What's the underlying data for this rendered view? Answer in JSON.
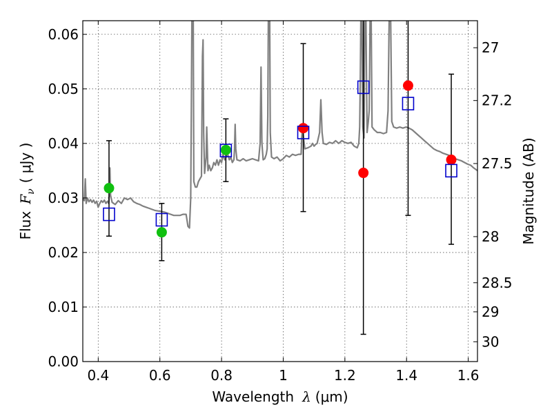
{
  "chart_data": {
    "type": "scatter",
    "xlabel": {
      "prefix": "Wavelength",
      "symbol": "λ",
      "unit": "(μm)"
    },
    "ylabel": {
      "prefix": "Flux",
      "symbol": "F",
      "subscript": "ν",
      "unit": "(  μJy )"
    },
    "y2label": "Magnitude (AB)",
    "xlim": [
      0.35,
      1.63
    ],
    "ylim": [
      0.0,
      0.0625
    ],
    "grid": true,
    "x_ticks": [
      0.4,
      0.6,
      0.8,
      1.0,
      1.2,
      1.4,
      1.6
    ],
    "x_tick_labels": [
      "0.4",
      "0.6",
      "0.8",
      "1",
      "1.2",
      "1.4",
      "1.6"
    ],
    "y_ticks": [
      0.0,
      0.01,
      0.02,
      0.03,
      0.04,
      0.05,
      0.06
    ],
    "y_tick_labels": [
      "0.00",
      "0.01",
      "0.02",
      "0.03",
      "0.04",
      "0.05",
      "0.06"
    ],
    "y2_ticks": [
      {
        "label": "27",
        "magnitude": 27.0
      },
      {
        "label": "27.2",
        "magnitude": 27.2
      },
      {
        "label": "27.5",
        "magnitude": 27.5
      },
      {
        "label": "28",
        "magnitude": 28.0
      },
      {
        "label": "28.5",
        "magnitude": 28.5
      },
      {
        "label": "29",
        "magnitude": 29.0
      },
      {
        "label": "30",
        "magnitude": 30.0
      }
    ],
    "series": [
      {
        "style": "open-square",
        "color": "#0000cc",
        "points": [
          {
            "x": 0.435,
            "y": 0.027,
            "ylo": 0.023,
            "yhi": 0.0405
          },
          {
            "x": 0.606,
            "y": 0.026,
            "ylo": 0.0185,
            "yhi": 0.029
          },
          {
            "x": 0.814,
            "y": 0.0387,
            "ylo": 0.033,
            "yhi": 0.0445
          },
          {
            "x": 1.065,
            "y": 0.042,
            "ylo": 0.0275,
            "yhi": 0.0583
          },
          {
            "x": 1.26,
            "y": 0.0503,
            "ylo": 0.005,
            "yhi": 0.065
          },
          {
            "x": 1.405,
            "y": 0.0473,
            "ylo": 0.0268,
            "yhi": 0.065
          },
          {
            "x": 1.545,
            "y": 0.035,
            "ylo": 0.0215,
            "yhi": 0.0527
          }
        ]
      },
      {
        "style": "filled-circle",
        "color": "#10c010",
        "points": [
          {
            "x": 0.435,
            "y": 0.0318
          },
          {
            "x": 0.606,
            "y": 0.0237
          },
          {
            "x": 0.814,
            "y": 0.0388
          }
        ]
      },
      {
        "style": "filled-circle",
        "color": "#ff0000",
        "points": [
          {
            "x": 1.065,
            "y": 0.0428
          },
          {
            "x": 1.26,
            "y": 0.0346
          },
          {
            "x": 1.405,
            "y": 0.0506
          },
          {
            "x": 1.545,
            "y": 0.037
          }
        ]
      },
      {
        "style": "line",
        "color": "#808080",
        "points": [
          [
            0.35,
            0.03
          ],
          [
            0.355,
            0.0295
          ],
          [
            0.358,
            0.0335
          ],
          [
            0.361,
            0.029
          ],
          [
            0.365,
            0.03
          ],
          [
            0.37,
            0.0293
          ],
          [
            0.375,
            0.0297
          ],
          [
            0.38,
            0.0292
          ],
          [
            0.385,
            0.0296
          ],
          [
            0.39,
            0.029
          ],
          [
            0.395,
            0.0294
          ],
          [
            0.4,
            0.0283
          ],
          [
            0.405,
            0.029
          ],
          [
            0.41,
            0.0295
          ],
          [
            0.415,
            0.0292
          ],
          [
            0.42,
            0.0296
          ],
          [
            0.425,
            0.029
          ],
          [
            0.43,
            0.0294
          ],
          [
            0.434,
            0.029
          ],
          [
            0.436,
            0.0305
          ],
          [
            0.438,
            0.0355
          ],
          [
            0.44,
            0.0305
          ],
          [
            0.445,
            0.0292
          ],
          [
            0.455,
            0.0288
          ],
          [
            0.465,
            0.0295
          ],
          [
            0.475,
            0.029
          ],
          [
            0.485,
            0.03
          ],
          [
            0.495,
            0.0297
          ],
          [
            0.505,
            0.03
          ],
          [
            0.515,
            0.0293
          ],
          [
            0.525,
            0.029
          ],
          [
            0.535,
            0.0288
          ],
          [
            0.545,
            0.0285
          ],
          [
            0.555,
            0.0283
          ],
          [
            0.565,
            0.0281
          ],
          [
            0.575,
            0.0279
          ],
          [
            0.585,
            0.0277
          ],
          [
            0.595,
            0.0276
          ],
          [
            0.605,
            0.0275
          ],
          [
            0.615,
            0.0274
          ],
          [
            0.625,
            0.0272
          ],
          [
            0.635,
            0.027
          ],
          [
            0.645,
            0.0268
          ],
          [
            0.655,
            0.0268
          ],
          [
            0.665,
            0.0268
          ],
          [
            0.675,
            0.027
          ],
          [
            0.685,
            0.027
          ],
          [
            0.691,
            0.0248
          ],
          [
            0.696,
            0.0245
          ],
          [
            0.7,
            0.03
          ],
          [
            0.702,
            0.046
          ],
          [
            0.704,
            0.065
          ],
          [
            0.708,
            0.065
          ],
          [
            0.71,
            0.033
          ],
          [
            0.715,
            0.032
          ],
          [
            0.72,
            0.032
          ],
          [
            0.725,
            0.033
          ],
          [
            0.73,
            0.0335
          ],
          [
            0.735,
            0.034
          ],
          [
            0.738,
            0.056
          ],
          [
            0.74,
            0.059
          ],
          [
            0.742,
            0.042
          ],
          [
            0.745,
            0.0345
          ],
          [
            0.75,
            0.0375
          ],
          [
            0.752,
            0.043
          ],
          [
            0.756,
            0.035
          ],
          [
            0.76,
            0.036
          ],
          [
            0.765,
            0.035
          ],
          [
            0.77,
            0.0355
          ],
          [
            0.775,
            0.0365
          ],
          [
            0.78,
            0.036
          ],
          [
            0.785,
            0.037
          ],
          [
            0.79,
            0.036
          ],
          [
            0.795,
            0.037
          ],
          [
            0.8,
            0.0365
          ],
          [
            0.805,
            0.038
          ],
          [
            0.81,
            0.037
          ],
          [
            0.815,
            0.0375
          ],
          [
            0.82,
            0.038
          ],
          [
            0.825,
            0.037
          ],
          [
            0.83,
            0.0375
          ],
          [
            0.835,
            0.0365
          ],
          [
            0.84,
            0.037
          ],
          [
            0.842,
            0.039
          ],
          [
            0.844,
            0.0435
          ],
          [
            0.846,
            0.039
          ],
          [
            0.85,
            0.037
          ],
          [
            0.86,
            0.0368
          ],
          [
            0.87,
            0.0372
          ],
          [
            0.88,
            0.0368
          ],
          [
            0.89,
            0.037
          ],
          [
            0.9,
            0.0372
          ],
          [
            0.91,
            0.037
          ],
          [
            0.92,
            0.0368
          ],
          [
            0.925,
            0.04
          ],
          [
            0.928,
            0.054
          ],
          [
            0.931,
            0.04
          ],
          [
            0.935,
            0.037
          ],
          [
            0.94,
            0.0372
          ],
          [
            0.945,
            0.038
          ],
          [
            0.948,
            0.039
          ],
          [
            0.95,
            0.045
          ],
          [
            0.952,
            0.065
          ],
          [
            0.956,
            0.065
          ],
          [
            0.958,
            0.042
          ],
          [
            0.962,
            0.0375
          ],
          [
            0.97,
            0.0372
          ],
          [
            0.98,
            0.0375
          ],
          [
            0.99,
            0.0368
          ],
          [
            1.0,
            0.0372
          ],
          [
            1.01,
            0.0378
          ],
          [
            1.02,
            0.0375
          ],
          [
            1.03,
            0.038
          ],
          [
            1.04,
            0.0378
          ],
          [
            1.05,
            0.038
          ],
          [
            1.055,
            0.038
          ],
          [
            1.058,
            0.038
          ],
          [
            1.06,
            0.041
          ],
          [
            1.063,
            0.043
          ],
          [
            1.066,
            0.041
          ],
          [
            1.07,
            0.039
          ],
          [
            1.08,
            0.0392
          ],
          [
            1.09,
            0.0395
          ],
          [
            1.095,
            0.04
          ],
          [
            1.1,
            0.0395
          ],
          [
            1.105,
            0.0398
          ],
          [
            1.11,
            0.04
          ],
          [
            1.118,
            0.042
          ],
          [
            1.122,
            0.048
          ],
          [
            1.126,
            0.042
          ],
          [
            1.13,
            0.04
          ],
          [
            1.14,
            0.0398
          ],
          [
            1.15,
            0.0402
          ],
          [
            1.16,
            0.04
          ],
          [
            1.17,
            0.0405
          ],
          [
            1.18,
            0.04
          ],
          [
            1.19,
            0.0405
          ],
          [
            1.2,
            0.0402
          ],
          [
            1.21,
            0.04
          ],
          [
            1.22,
            0.0402
          ],
          [
            1.23,
            0.0395
          ],
          [
            1.24,
            0.0392
          ],
          [
            1.245,
            0.04
          ],
          [
            1.248,
            0.043
          ],
          [
            1.25,
            0.052
          ],
          [
            1.252,
            0.065
          ],
          [
            1.255,
            0.065
          ],
          [
            1.258,
            0.043
          ],
          [
            1.262,
            0.041
          ],
          [
            1.265,
            0.065
          ],
          [
            1.268,
            0.065
          ],
          [
            1.272,
            0.042
          ],
          [
            1.276,
            0.044
          ],
          [
            1.279,
            0.046
          ],
          [
            1.282,
            0.065
          ],
          [
            1.285,
            0.065
          ],
          [
            1.288,
            0.043
          ],
          [
            1.295,
            0.0425
          ],
          [
            1.305,
            0.042
          ],
          [
            1.315,
            0.042
          ],
          [
            1.325,
            0.0418
          ],
          [
            1.335,
            0.042
          ],
          [
            1.34,
            0.046
          ],
          [
            1.344,
            0.065
          ],
          [
            1.348,
            0.065
          ],
          [
            1.352,
            0.044
          ],
          [
            1.358,
            0.043
          ],
          [
            1.368,
            0.0428
          ],
          [
            1.378,
            0.043
          ],
          [
            1.388,
            0.0428
          ],
          [
            1.398,
            0.043
          ],
          [
            1.408,
            0.0428
          ],
          [
            1.418,
            0.0425
          ],
          [
            1.428,
            0.042
          ],
          [
            1.438,
            0.0415
          ],
          [
            1.448,
            0.041
          ],
          [
            1.458,
            0.0405
          ],
          [
            1.468,
            0.04
          ],
          [
            1.478,
            0.0395
          ],
          [
            1.488,
            0.039
          ],
          [
            1.498,
            0.0387
          ],
          [
            1.508,
            0.0385
          ],
          [
            1.518,
            0.0382
          ],
          [
            1.528,
            0.038
          ],
          [
            1.538,
            0.0378
          ],
          [
            1.548,
            0.0375
          ],
          [
            1.558,
            0.0372
          ],
          [
            1.568,
            0.037
          ],
          [
            1.578,
            0.0368
          ],
          [
            1.588,
            0.0365
          ],
          [
            1.598,
            0.0362
          ],
          [
            1.608,
            0.036
          ],
          [
            1.618,
            0.0355
          ],
          [
            1.63,
            0.035
          ]
        ]
      }
    ]
  }
}
